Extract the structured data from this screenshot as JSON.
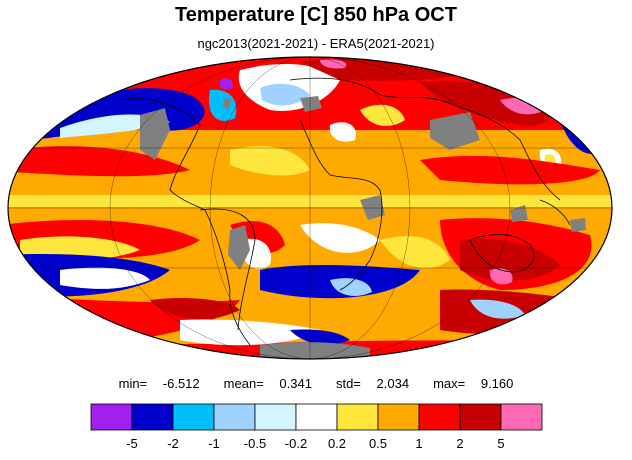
{
  "header": {
    "title": "Temperature [C] 850 hPa OCT",
    "subtitle": "ngc2013(2021-2021) - ERA5(2021-2021)"
  },
  "stats": {
    "min_label": "min=",
    "min": "-6.512",
    "mean_label": "mean=",
    "mean": "0.341",
    "std_label": "std=",
    "std": "2.034",
    "max_label": "max=",
    "max": "9.160"
  },
  "colorbar": {
    "colors": [
      "#a020f0",
      "#0000cd",
      "#00bfff",
      "#a0d2ff",
      "#d2f5ff",
      "#ffffff",
      "#ffe63c",
      "#ffaa00",
      "#ff0000",
      "#c80000",
      "#ff69b4"
    ],
    "labels": [
      "-5",
      "-2",
      "-1",
      "-0.5",
      "-0.2",
      "0.2",
      "0.5",
      "1",
      "2",
      "5"
    ]
  },
  "map": {
    "projection": "mollweide",
    "land_mask_color": "#808080",
    "outline_color": "#000000"
  }
}
